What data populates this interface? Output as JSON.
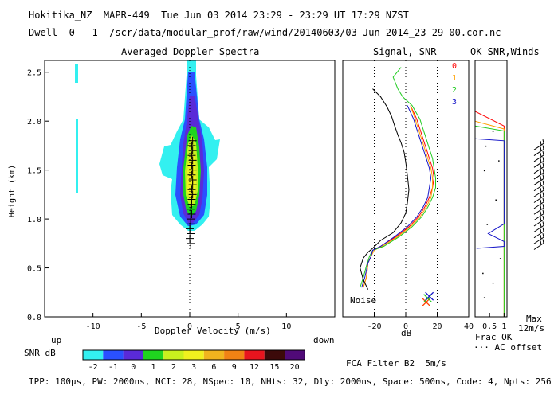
{
  "header": {
    "line1": "Hokitika_NZ  MAPR-449  Tue Jun 03 2014 23:29 - 23:29 UT 17:29 NZST",
    "line2": "Dwell  0 - 1  /scr/data/modular_prof/raw/wind/20140603/03-Jun-2014_23-29-00.cor.nc"
  },
  "panel_titles": {
    "spectra": "Averaged Doppler Spectra",
    "signal": "Signal, SNR",
    "ok": "OK SNR,Winds"
  },
  "axes": {
    "height_label": "Height (km)",
    "height_ticks": [
      "0.0",
      "0.5",
      "1.0",
      "1.5",
      "2.0",
      "2.5"
    ],
    "height_values": [
      0.0,
      0.5,
      1.0,
      1.5,
      2.0,
      2.5
    ],
    "height_lim": [
      0.0,
      2.62
    ],
    "doppler_ticks": [
      "-10",
      "-5",
      "0",
      "5",
      "10"
    ],
    "doppler_values": [
      -10,
      -5,
      0,
      5,
      10
    ],
    "doppler_lim": [
      -15,
      15
    ],
    "doppler_label": "Doppler Velocity (m/s)",
    "up": "up",
    "down": "down",
    "signal_ticks": [
      "-20",
      "0",
      "20",
      "40"
    ],
    "signal_values": [
      -20,
      0,
      20,
      40
    ],
    "signal_lim": [
      -40,
      40
    ],
    "signal_label": "dB",
    "ok_ticks": [
      "0.5",
      "1"
    ],
    "ok_label_frac": "Frac OK",
    "ok_label_ac": "··· AC offset",
    "max_label": "Max",
    "max_value": "12m/s"
  },
  "colorbar": {
    "label": "SNR dB",
    "ticks": [
      "-2",
      "-1",
      "0",
      "1",
      "2",
      "3",
      "6",
      "9",
      "12",
      "15",
      "20"
    ],
    "colors": [
      "#33f0f0",
      "#2a50ff",
      "#5a2ad8",
      "#1fd41f",
      "#c8f01e",
      "#f0f01e",
      "#f0b41e",
      "#f08214",
      "#e8141e",
      "#3c0a0a",
      "#500a78"
    ]
  },
  "signal_legend": {
    "items": [
      {
        "label": "0",
        "color": "#ff0000"
      },
      {
        "label": "1",
        "color": "#ffa000"
      },
      {
        "label": "2",
        "color": "#22cc22"
      },
      {
        "label": "3",
        "color": "#1414c8"
      }
    ],
    "noise_label": "Noise"
  },
  "footer": {
    "filter": "FCA Filter B2  5m/s",
    "params": "IPP: 100μs, PW: 2000ns, NCI: 28, NSpec: 10, NHts: 32, Dly: 2000ns, Space: 500ns, Code: 4, Npts: 256"
  },
  "chart_data": [
    {
      "type": "heatmap",
      "title": "Averaged Doppler Spectra",
      "xlabel": "Doppler Velocity (m/s)",
      "ylabel": "Height (km)",
      "xlim": [
        -15,
        15
      ],
      "ylim": [
        0.0,
        2.62
      ],
      "snr_bins_db": [
        -2,
        -1,
        0,
        1,
        2,
        3,
        6,
        9,
        12,
        15,
        20
      ],
      "peak_velocity_markers": {
        "height": [
          0.75,
          0.8,
          0.85,
          0.9,
          0.95,
          1.0,
          1.05,
          1.1,
          1.15,
          1.2,
          1.25,
          1.3,
          1.35,
          1.4,
          1.45,
          1.5,
          1.55,
          1.6,
          1.65,
          1.7,
          1.75,
          1.8
        ],
        "velocity": [
          0.1,
          0.0,
          0.1,
          0.0,
          0.1,
          0.1,
          0.2,
          0.1,
          0.2,
          0.2,
          0.3,
          0.2,
          0.3,
          0.3,
          0.2,
          0.3,
          0.2,
          0.3,
          0.2,
          0.3,
          0.2,
          0.3
        ]
      }
    },
    {
      "type": "line",
      "title": "Signal, SNR",
      "xlabel": "dB",
      "ylabel": "Height (km)",
      "xlim": [
        -40,
        40
      ],
      "ylim": [
        0.0,
        2.62
      ],
      "series": [
        {
          "name": "0",
          "color": "#ff0000",
          "x": [
            -27,
            -25,
            -24,
            -22,
            -21,
            -16,
            -6,
            2,
            8,
            12,
            15,
            17,
            18,
            17,
            15,
            13,
            11,
            9,
            7,
            3
          ],
          "y": [
            0.3,
            0.4,
            0.55,
            0.62,
            0.68,
            0.72,
            0.82,
            0.92,
            1.02,
            1.12,
            1.22,
            1.32,
            1.42,
            1.52,
            1.62,
            1.72,
            1.82,
            1.92,
            2.02,
            2.16
          ]
        },
        {
          "name": "1",
          "color": "#ffa000",
          "x": [
            -27,
            -25,
            -24,
            -22,
            -20,
            -15,
            -5,
            3,
            9,
            13,
            16,
            17,
            17,
            16,
            14,
            12,
            10,
            8,
            6,
            3
          ],
          "y": [
            0.3,
            0.4,
            0.55,
            0.62,
            0.68,
            0.72,
            0.82,
            0.92,
            1.02,
            1.12,
            1.22,
            1.32,
            1.42,
            1.52,
            1.62,
            1.72,
            1.82,
            1.92,
            2.02,
            2.16
          ]
        },
        {
          "name": "2",
          "color": "#22cc22",
          "x": [
            -29,
            -27,
            -25,
            -23,
            -21,
            -14,
            -4,
            4,
            10,
            14,
            17,
            19,
            19,
            18,
            17,
            15,
            13,
            11,
            9,
            4,
            -2,
            -5,
            -8,
            -3
          ],
          "y": [
            0.3,
            0.4,
            0.52,
            0.62,
            0.68,
            0.72,
            0.82,
            0.92,
            1.02,
            1.12,
            1.22,
            1.32,
            1.42,
            1.52,
            1.62,
            1.72,
            1.82,
            1.92,
            2.02,
            2.16,
            2.25,
            2.33,
            2.45,
            2.55
          ]
        },
        {
          "name": "3",
          "color": "#1414c8",
          "x": [
            -28,
            -26,
            -24,
            -22,
            -21,
            -16,
            -7,
            1,
            7,
            11,
            14,
            15,
            16,
            15,
            13,
            11,
            9,
            7,
            5,
            1
          ],
          "y": [
            0.3,
            0.4,
            0.55,
            0.62,
            0.68,
            0.72,
            0.82,
            0.92,
            1.02,
            1.12,
            1.22,
            1.32,
            1.42,
            1.52,
            1.62,
            1.72,
            1.82,
            1.92,
            2.02,
            2.16
          ]
        },
        {
          "name": "Noise",
          "color": "#000000",
          "x": [
            -24,
            -27,
            -29,
            -27,
            -24,
            -21,
            -16,
            -8,
            -3,
            0,
            1,
            2,
            1,
            0,
            -1,
            -3,
            -5,
            -7,
            -9,
            -12,
            -16,
            -21
          ],
          "y": [
            0.28,
            0.38,
            0.5,
            0.6,
            0.66,
            0.7,
            0.78,
            0.86,
            0.96,
            1.06,
            1.16,
            1.3,
            1.45,
            1.58,
            1.68,
            1.78,
            1.86,
            1.95,
            2.05,
            2.15,
            2.25,
            2.33
          ]
        }
      ],
      "markers": [
        {
          "symbol": "x",
          "color": "#ff4000",
          "x": 13,
          "y": 0.15
        },
        {
          "symbol": "x",
          "color": "#22cc22",
          "x": 14,
          "y": 0.19
        },
        {
          "symbol": "x",
          "color": "#1414c8",
          "x": 15,
          "y": 0.21
        }
      ],
      "vertical_guides_db": [
        -20,
        0,
        20
      ]
    },
    {
      "type": "line",
      "title": "OK SNR,Winds",
      "xlabel": "Frac OK",
      "xlim": [
        0,
        1.1
      ],
      "series": [
        {
          "name": "0",
          "color": "#ff0000",
          "x": [
            0,
            1.0,
            1.0
          ],
          "y": [
            2.1,
            1.95,
            0.0
          ]
        },
        {
          "name": "1",
          "color": "#ffa000",
          "x": [
            0,
            1.0,
            1.0
          ],
          "y": [
            2.0,
            1.92,
            0.0
          ]
        },
        {
          "name": "2",
          "color": "#22cc22",
          "x": [
            0,
            1.0,
            1.0
          ],
          "y": [
            1.95,
            1.9,
            0.0
          ]
        },
        {
          "name": "3",
          "color": "#1414c8",
          "x": [
            0,
            1.0,
            1.0,
            0.45,
            1.0,
            1.0,
            0.05
          ],
          "y": [
            1.82,
            1.8,
            0.95,
            0.85,
            0.77,
            0.72,
            0.7
          ]
        }
      ],
      "wind_barbs": {
        "heights": [
          0.72,
          0.78,
          0.84,
          0.9,
          0.96,
          1.02,
          1.08,
          1.14,
          1.2,
          1.26,
          1.32,
          1.38,
          1.44,
          1.5,
          1.56,
          1.62,
          1.68,
          1.74
        ],
        "max_speed_ms": 12
      }
    }
  ]
}
